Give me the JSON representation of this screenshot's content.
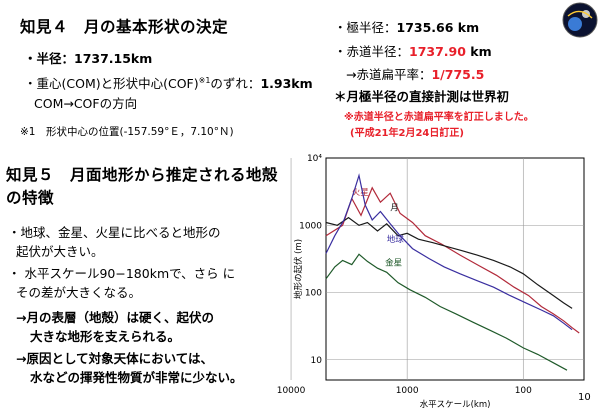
{
  "s4": {
    "title": "知見４　月の基本形状の決定",
    "line1": "・半径：1737.15km",
    "line2a": "・重心(COM)と形状中心(COF)",
    "line2sup": "※1",
    "line2b": "のずれ：",
    "line2val": "1.93km",
    "line3": "COM→COFの方向",
    "footnote": "※1　形状中心の位置(-157.59°Ｅ，7.10°Ｎ)"
  },
  "right": {
    "polar_label": "・極半径：",
    "polar_val": "1735.66 km",
    "eq_label": "・赤道半径：",
    "eq_val": "1737.90",
    "eq_unit": " km",
    "flat_label": "→赤道扁平率：",
    "flat_val": "1/775.5",
    "direct": "＊月極半径の直接計測は世界初",
    "corr1": "※赤道半径と赤道扁平率を訂正しました。",
    "corr2": "(平成21年2月24日訂正)"
  },
  "s5": {
    "title1": "知見５　月面地形から推定される地殻",
    "title2": "の特徴",
    "b1a": "・地球、金星、火星に比べると地形の",
    "b1b": "起伏が大きい。",
    "b2a": "・ 水平スケール90−180kmで、さら に",
    "b2b": "その差が大きくなる。",
    "c1a": "→月の表層（地殻）は硬く、起伏の",
    "c1b": "大きな地形を支えられる。",
    "c2a": "→原因として対象天体においては、",
    "c2b": "水などの揮発性物質が非常に少ない。"
  },
  "page_number": "10",
  "chart_data": {
    "type": "line",
    "xlabel": "水平スケール(km)",
    "ylabel": "地形の起伏 (m)",
    "xscale": "log",
    "yscale": "log",
    "xlim": [
      5000,
      30
    ],
    "ylim": [
      5,
      10000
    ],
    "x_ticks": [
      "10000",
      "1000",
      "100"
    ],
    "y_ticks": [
      "10⁴",
      "1000",
      "100",
      "10"
    ],
    "series": [
      {
        "name": "火星",
        "color": "#b22a3a",
        "points": [
          [
            5000,
            700
          ],
          [
            3600,
            1000
          ],
          [
            3000,
            2500
          ],
          [
            2500,
            1400
          ],
          [
            2000,
            3600
          ],
          [
            1700,
            2200
          ],
          [
            1400,
            3000
          ],
          [
            1150,
            1500
          ],
          [
            900,
            1100
          ],
          [
            700,
            700
          ],
          [
            500,
            520
          ],
          [
            350,
            360
          ],
          [
            250,
            260
          ],
          [
            170,
            180
          ],
          [
            120,
            120
          ],
          [
            90,
            90
          ],
          [
            70,
            62
          ],
          [
            55,
            48
          ],
          [
            45,
            38
          ],
          [
            38,
            30
          ],
          [
            33,
            25
          ]
        ]
      },
      {
        "name": "月",
        "color": "#1a1a1a",
        "points": [
          [
            5000,
            1100
          ],
          [
            4000,
            1000
          ],
          [
            3200,
            1300
          ],
          [
            2600,
            1000
          ],
          [
            2200,
            1100
          ],
          [
            1800,
            820
          ],
          [
            1500,
            1050
          ],
          [
            1200,
            700
          ],
          [
            1000,
            760
          ],
          [
            800,
            620
          ],
          [
            600,
            550
          ],
          [
            450,
            480
          ],
          [
            340,
            420
          ],
          [
            250,
            360
          ],
          [
            180,
            300
          ],
          [
            130,
            240
          ],
          [
            100,
            190
          ],
          [
            75,
            130
          ],
          [
            55,
            90
          ],
          [
            45,
            70
          ],
          [
            38,
            58
          ]
        ]
      },
      {
        "name": "地球",
        "color": "#3a2fa0",
        "points": [
          [
            5000,
            380
          ],
          [
            4200,
            700
          ],
          [
            3500,
            1200
          ],
          [
            3000,
            2500
          ],
          [
            2600,
            5500
          ],
          [
            2300,
            2000
          ],
          [
            2000,
            1200
          ],
          [
            1700,
            1600
          ],
          [
            1400,
            1050
          ],
          [
            1150,
            700
          ],
          [
            900,
            450
          ],
          [
            650,
            320
          ],
          [
            480,
            240
          ],
          [
            350,
            190
          ],
          [
            250,
            150
          ],
          [
            180,
            120
          ],
          [
            130,
            90
          ],
          [
            95,
            70
          ],
          [
            70,
            55
          ],
          [
            55,
            45
          ],
          [
            45,
            35
          ],
          [
            38,
            28
          ]
        ]
      },
      {
        "name": "金星",
        "color": "#1f5a2a",
        "points": [
          [
            5000,
            160
          ],
          [
            4200,
            240
          ],
          [
            3600,
            300
          ],
          [
            3000,
            260
          ],
          [
            2600,
            370
          ],
          [
            2200,
            290
          ],
          [
            1800,
            230
          ],
          [
            1500,
            200
          ],
          [
            1200,
            140
          ],
          [
            950,
            110
          ],
          [
            700,
            85
          ],
          [
            520,
            62
          ],
          [
            380,
            48
          ],
          [
            270,
            36
          ],
          [
            190,
            27
          ],
          [
            140,
            21
          ],
          [
            100,
            15
          ],
          [
            75,
            12
          ],
          [
            55,
            9
          ],
          [
            42,
            7
          ]
        ]
      }
    ]
  }
}
